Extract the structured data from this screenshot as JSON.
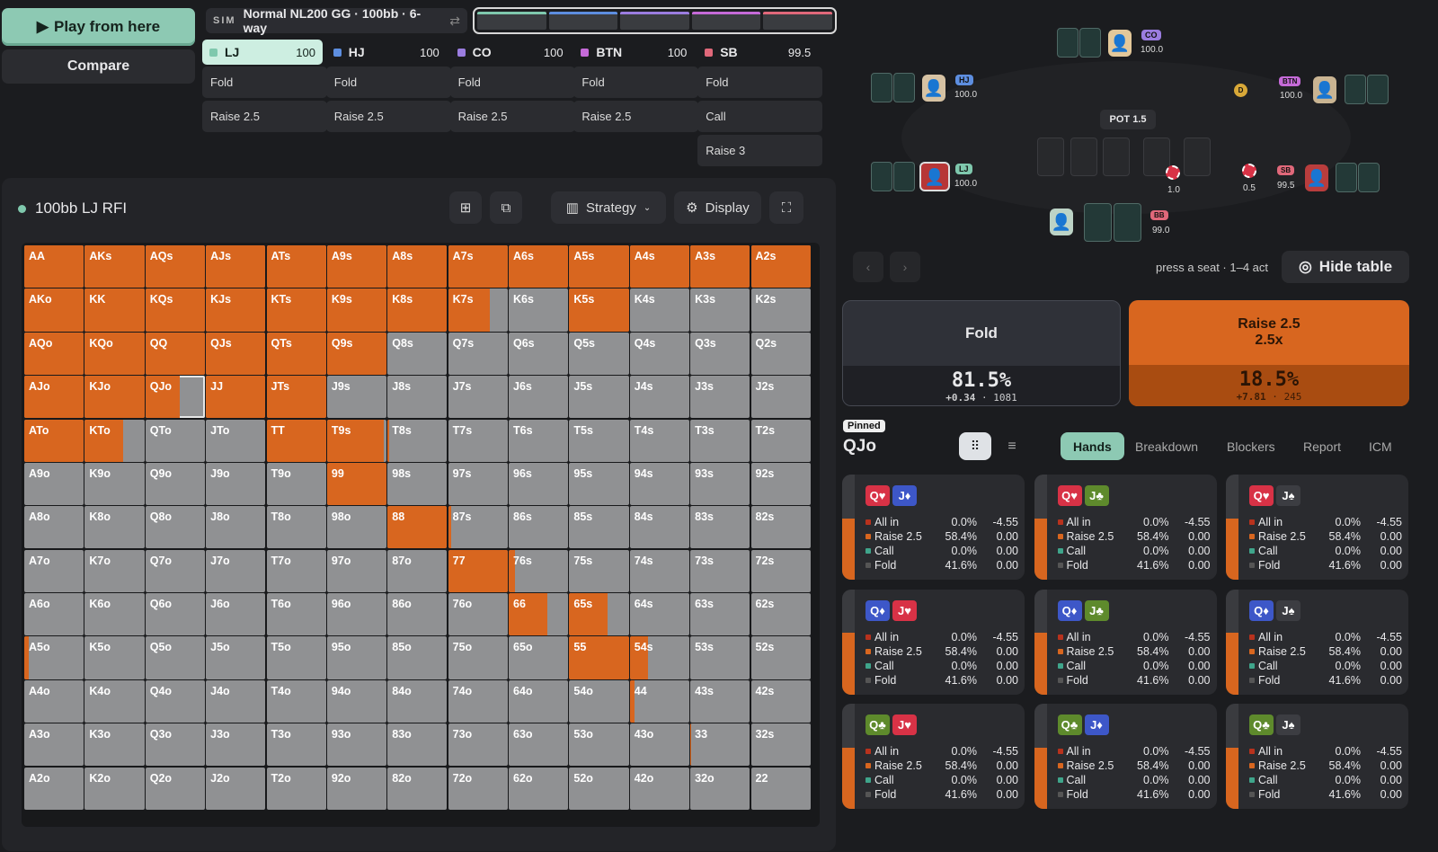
{
  "top": {
    "play_label": "Play from here",
    "compare_label": "Compare"
  },
  "sim": {
    "tag": "SIM",
    "title": "Normal NL200 GG · 100bb · 6-way",
    "swap": "⇄"
  },
  "seat_bar_colors": [
    "#7fc8ad",
    "#5d8ee0",
    "#9b7de0",
    "#c56ad8",
    "#e0687a"
  ],
  "positions": [
    {
      "name": "LJ",
      "stack": "100",
      "color": "#7fc8ad",
      "actions": [
        "Fold",
        "Raise 2.5"
      ]
    },
    {
      "name": "HJ",
      "stack": "100",
      "color": "#5d8ee0",
      "actions": [
        "Fold",
        "Raise 2.5"
      ]
    },
    {
      "name": "CO",
      "stack": "100",
      "color": "#9b7de0",
      "actions": [
        "Fold",
        "Raise 2.5"
      ]
    },
    {
      "name": "BTN",
      "stack": "100",
      "color": "#c56ad8",
      "actions": [
        "Fold",
        "Raise 2.5"
      ]
    },
    {
      "name": "SB",
      "stack": "99.5",
      "color": "#e0687a",
      "actions": [
        "Fold",
        "Call",
        "Raise 3"
      ]
    }
  ],
  "panel": {
    "title": "100bb LJ RFI",
    "strategy_label": "Strategy",
    "display_label": "Display"
  },
  "range_grid": {
    "ranks": [
      "A",
      "K",
      "Q",
      "J",
      "T",
      "9",
      "8",
      "7",
      "6",
      "5",
      "4",
      "3",
      "2"
    ],
    "raise_color": "#d8661f",
    "fold_color": "#909193",
    "selected": "QJo",
    "raise_freq": [
      [
        1,
        1,
        1,
        1,
        1,
        1,
        1,
        1,
        1,
        1,
        1,
        1,
        1
      ],
      [
        1,
        1,
        1,
        1,
        1,
        1,
        1,
        0.7,
        0,
        1,
        0,
        0,
        0
      ],
      [
        1,
        1,
        1,
        1,
        1,
        1,
        0,
        0,
        0,
        0,
        0,
        0,
        0
      ],
      [
        1,
        1,
        0.58,
        1,
        1,
        0,
        0,
        0,
        0,
        0,
        0,
        0,
        0
      ],
      [
        1,
        0.65,
        0,
        0,
        1,
        0.95,
        0.02,
        0,
        0,
        0,
        0,
        0,
        0
      ],
      [
        0,
        0,
        0,
        0,
        0,
        1,
        0,
        0,
        0,
        0,
        0,
        0,
        0
      ],
      [
        0,
        0,
        0,
        0,
        0,
        0,
        1,
        0.05,
        0,
        0,
        0,
        0,
        0
      ],
      [
        0,
        0,
        0,
        0,
        0,
        0,
        0,
        1,
        0.1,
        0,
        0,
        0,
        0
      ],
      [
        0,
        0,
        0,
        0,
        0,
        0,
        0,
        0,
        0.65,
        0.65,
        0,
        0,
        0
      ],
      [
        0.08,
        0,
        0,
        0,
        0,
        0,
        0,
        0,
        0,
        1,
        0.3,
        0,
        0
      ],
      [
        0,
        0,
        0,
        0,
        0,
        0,
        0,
        0,
        0,
        0,
        0.08,
        0,
        0
      ],
      [
        0,
        0,
        0,
        0,
        0,
        0,
        0,
        0,
        0,
        0,
        0,
        0.02,
        0
      ],
      [
        0,
        0,
        0,
        0,
        0,
        0,
        0,
        0,
        0,
        0,
        0,
        0,
        0
      ]
    ]
  },
  "table": {
    "pot_label": "POT",
    "pot_value": "1.5",
    "seats": {
      "co": {
        "tag": "CO",
        "stack": "100.0"
      },
      "hj": {
        "tag": "HJ",
        "stack": "100.0"
      },
      "btn": {
        "tag": "BTN",
        "stack": "100.0"
      },
      "lj": {
        "tag": "LJ",
        "stack": "100.0"
      },
      "sb": {
        "tag": "SB",
        "stack": "99.5",
        "bet": "0.5"
      },
      "bb": {
        "tag": "BB",
        "stack": "99.0",
        "bet": "1.0"
      }
    },
    "dealer": "D",
    "hint": "press a seat · 1–4 act",
    "hide_label": "Hide table"
  },
  "actions_summary": {
    "fold": {
      "label": "Fold",
      "pct": "81.5%",
      "ev": "+0.34",
      "combos": "1081"
    },
    "raise": {
      "label": "Raise 2.5",
      "sub": "2.5x",
      "pct": "18.5%",
      "ev": "+7.81",
      "combos": "245"
    }
  },
  "hand_panel": {
    "pinned": "Pinned",
    "hand": "QJo",
    "tabs": [
      "Hands",
      "Breakdown",
      "Blockers",
      "Report",
      "ICM"
    ],
    "row_labels": [
      "All in",
      "Raise 2.5",
      "Call",
      "Fold"
    ],
    "row_colors": [
      "#b8321d",
      "#d8661f",
      "#3fa58b",
      "#555"
    ],
    "row_pcts": [
      "0.0%",
      "58.4%",
      "0.0%",
      "41.6%"
    ],
    "row_evs": [
      "-4.55",
      "0.00",
      "0.00",
      "0.00"
    ],
    "combos": [
      {
        "c1": "Q♥",
        "c1c": "#d83246",
        "c2": "J♦",
        "c2c": "#3d57c8"
      },
      {
        "c1": "Q♥",
        "c1c": "#d83246",
        "c2": "J♣",
        "c2c": "#5e8a2c"
      },
      {
        "c1": "Q♥",
        "c1c": "#d83246",
        "c2": "J♠",
        "c2c": "#3c3d42"
      },
      {
        "c1": "Q♦",
        "c1c": "#3d57c8",
        "c2": "J♥",
        "c2c": "#d83246"
      },
      {
        "c1": "Q♦",
        "c1c": "#3d57c8",
        "c2": "J♣",
        "c2c": "#5e8a2c"
      },
      {
        "c1": "Q♦",
        "c1c": "#3d57c8",
        "c2": "J♠",
        "c2c": "#3c3d42"
      },
      {
        "c1": "Q♣",
        "c1c": "#5e8a2c",
        "c2": "J♥",
        "c2c": "#d83246"
      },
      {
        "c1": "Q♣",
        "c1c": "#5e8a2c",
        "c2": "J♦",
        "c2c": "#3d57c8"
      },
      {
        "c1": "Q♣",
        "c1c": "#5e8a2c",
        "c2": "J♠",
        "c2c": "#3c3d42"
      }
    ],
    "raise_fraction": 0.584
  }
}
